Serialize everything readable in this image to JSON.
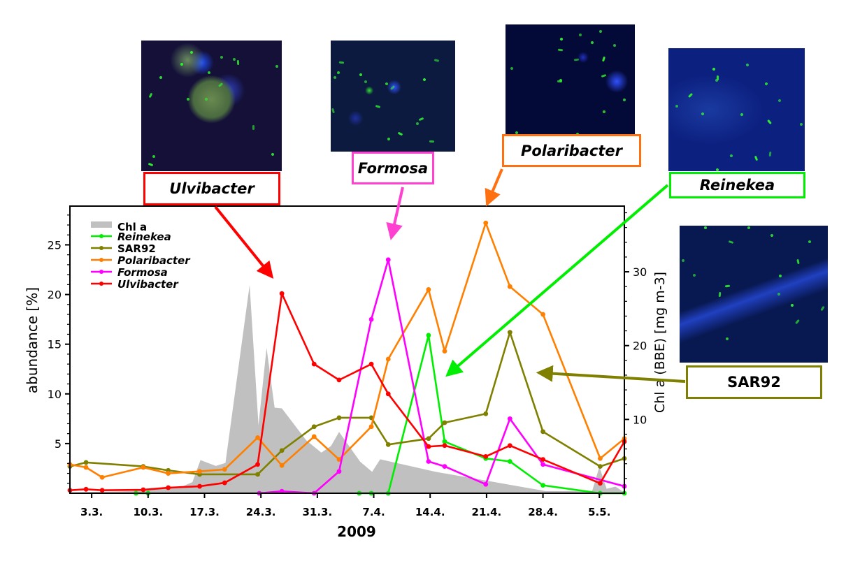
{
  "chart_data": {
    "type": "line",
    "title": "",
    "xlabel": "2009",
    "ylabel": "abundance [%]",
    "y2label": "Chl a (BBE) [mg m-3]",
    "x_unit": "day of March 2009 (1 April = 32, 1 May = 62)",
    "xlim": [
      0.3,
      69.1
    ],
    "ylim": [
      0,
      28.9
    ],
    "y2lim": [
      0,
      38.9
    ],
    "grid": false,
    "legend_position": "top-left",
    "x_ticks": [
      {
        "value": 3,
        "label": "3.3."
      },
      {
        "value": 10,
        "label": "10.3."
      },
      {
        "value": 17,
        "label": "17.3."
      },
      {
        "value": 24,
        "label": "24.3."
      },
      {
        "value": 31,
        "label": "31.3."
      },
      {
        "value": 38,
        "label": "7.4."
      },
      {
        "value": 45,
        "label": "14.4."
      },
      {
        "value": 52,
        "label": "21.4."
      },
      {
        "value": 59,
        "label": "28.4."
      },
      {
        "value": 66,
        "label": "5.5."
      }
    ],
    "y_ticks": [
      5,
      10,
      15,
      20,
      25
    ],
    "y2_ticks": [
      10,
      20,
      30
    ],
    "chl_a": {
      "name": "Chl a",
      "color": "#c0c0c0",
      "axis": "right",
      "type": "area",
      "x": [
        0.3,
        8,
        14,
        15.5,
        16.5,
        18.4,
        19.6,
        22.6,
        23.7,
        24.7,
        25.7,
        26.6,
        29.6,
        31.5,
        32.7,
        33.7,
        36.3,
        37.8,
        38.8,
        45.7,
        52,
        59.3,
        65.1,
        66,
        66.9,
        68,
        69.1
      ],
      "y": [
        0.1,
        0.3,
        0.8,
        1.5,
        4.5,
        3.7,
        4.1,
        28.2,
        9.2,
        19.7,
        11.6,
        11.5,
        7.2,
        5.5,
        6.4,
        8.3,
        4.3,
        2.9,
        4.6,
        2.9,
        1.7,
        0.3,
        0.3,
        3.6,
        0.6,
        0.9,
        0.1
      ]
    },
    "series": [
      {
        "name": "Reinekea",
        "italic": true,
        "color": "#00ee00",
        "x": [
          8.5,
          10,
          null,
          36.2,
          37.7,
          39.8,
          44.8,
          46.8,
          51.9,
          54.9,
          59,
          66.1,
          69.1
        ],
        "y": [
          0,
          0,
          null,
          0,
          0,
          0,
          15.9,
          5.2,
          3.5,
          3.2,
          0.8,
          0,
          0
        ]
      },
      {
        "name": "SAR92",
        "italic": false,
        "color": "#808000",
        "x": [
          0.3,
          2.3,
          9.4,
          12.5,
          16.4,
          23.6,
          26.6,
          30.6,
          33.7,
          37.7,
          39.8,
          44.8,
          46.8,
          51.9,
          54.9,
          59,
          66.1,
          69.1
        ],
        "y": [
          2.7,
          3.1,
          2.7,
          2.3,
          1.9,
          1.9,
          4.3,
          6.7,
          7.6,
          7.6,
          4.9,
          5.5,
          7.1,
          8.0,
          16.2,
          6.2,
          2.7,
          3.5
        ]
      },
      {
        "name": "Polaribacter",
        "italic": true,
        "color": "#ff8000",
        "x": [
          0.3,
          2.3,
          4.3,
          9.4,
          12.5,
          16.4,
          19.5,
          23.6,
          26.6,
          30.6,
          33.7,
          37.7,
          39.8,
          44.8,
          46.8,
          51.9,
          54.9,
          59,
          66.1,
          69.1
        ],
        "y": [
          2.9,
          2.6,
          1.6,
          2.6,
          2.0,
          2.2,
          2.4,
          5.6,
          2.8,
          5.7,
          3.4,
          6.7,
          13.5,
          20.5,
          14.3,
          27.2,
          20.8,
          18.0,
          3.5,
          5.5
        ]
      },
      {
        "name": "Formosa",
        "italic": true,
        "color": "#ff00ff",
        "x": [
          23.8,
          26.6,
          30.6,
          33.7,
          37.7,
          39.8,
          44.8,
          46.8,
          51.9,
          54.9,
          59,
          69.1
        ],
        "y": [
          0,
          0.2,
          0,
          2.2,
          17.5,
          23.5,
          3.2,
          2.7,
          0.9,
          7.5,
          2.9,
          0.7
        ]
      },
      {
        "name": "Ulvibacter",
        "italic": true,
        "color": "#ff0000",
        "x": [
          0.3,
          2.3,
          4.3,
          9.4,
          12.5,
          16.4,
          19.5,
          23.6,
          26.6,
          30.6,
          33.7,
          37.7,
          39.8,
          44.8,
          46.8,
          51.9,
          54.9,
          59,
          66.1,
          69.1
        ],
        "y": [
          0.3,
          0.4,
          0.3,
          0.35,
          0.56,
          0.7,
          1.05,
          2.9,
          20.1,
          13.0,
          11.4,
          13.0,
          10.0,
          4.7,
          4.8,
          3.7,
          4.8,
          3.4,
          1.0,
          5.2
        ]
      }
    ]
  },
  "annotations": [
    {
      "label": "Ulvibacter",
      "italic": true,
      "color": "#ff0000"
    },
    {
      "label": "Formosa",
      "italic": true,
      "color": "#ff40d0"
    },
    {
      "label": "Polaribacter",
      "italic": true,
      "color": "#ff7010"
    },
    {
      "label": "Reinekea",
      "italic": true,
      "color": "#00ee00"
    },
    {
      "label": "SAR92",
      "italic": false,
      "color": "#808000"
    }
  ]
}
